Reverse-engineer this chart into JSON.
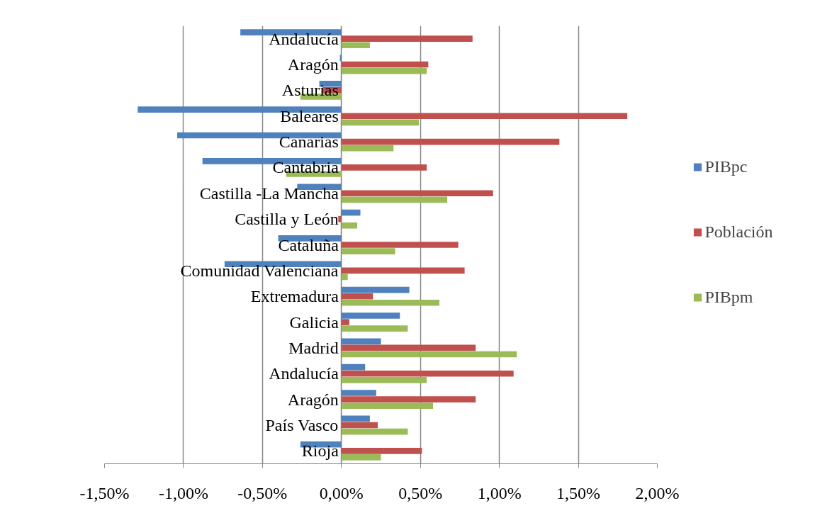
{
  "chart_data": {
    "type": "bar",
    "orientation": "horizontal",
    "categories": [
      "Andalucía",
      "Aragón",
      "Asturias",
      "Baleares",
      "Canarias",
      "Cantabria",
      "Castilla -La Mancha",
      "Castilla y León",
      "Cataluña",
      "Comunidad Valenciana",
      "Extremadura",
      "Galicia",
      "Madrid",
      "Andalucía",
      "Aragón",
      "País Vasco",
      "Rioja"
    ],
    "series": [
      {
        "name": "PIBpc",
        "color": "#4f81bd",
        "values": [
          -0.64,
          -0.01,
          -0.14,
          -1.29,
          -1.04,
          -0.88,
          -0.28,
          0.12,
          -0.4,
          -0.74,
          0.43,
          0.37,
          0.25,
          0.15,
          0.22,
          0.18,
          -0.26
        ]
      },
      {
        "name": "Población",
        "color": "#c0504d",
        "values": [
          0.83,
          0.55,
          -0.12,
          1.81,
          1.38,
          0.54,
          0.96,
          -0.02,
          0.74,
          0.78,
          0.2,
          0.05,
          0.85,
          1.09,
          0.85,
          0.23,
          0.51
        ]
      },
      {
        "name": "PIBpm",
        "color": "#9bbb59",
        "values": [
          0.18,
          0.54,
          -0.26,
          0.49,
          0.33,
          -0.35,
          0.67,
          0.1,
          0.34,
          0.04,
          0.62,
          0.42,
          1.11,
          0.54,
          0.58,
          0.42,
          0.25
        ]
      }
    ],
    "xlim": [
      -1.5,
      2.0
    ],
    "xticks": [
      {
        "value": -1.5,
        "label": "-1,50%"
      },
      {
        "value": -1.0,
        "label": "-1,00%"
      },
      {
        "value": -0.5,
        "label": "-0,50%"
      },
      {
        "value": 0,
        "label": "0,00%"
      },
      {
        "value": 0.5,
        "label": "0,50%"
      },
      {
        "value": 1.0,
        "label": "1,00%"
      },
      {
        "value": 1.5,
        "label": "1,50%"
      },
      {
        "value": 2.0,
        "label": "2,00%"
      }
    ],
    "grid": "x",
    "legend": "right"
  }
}
